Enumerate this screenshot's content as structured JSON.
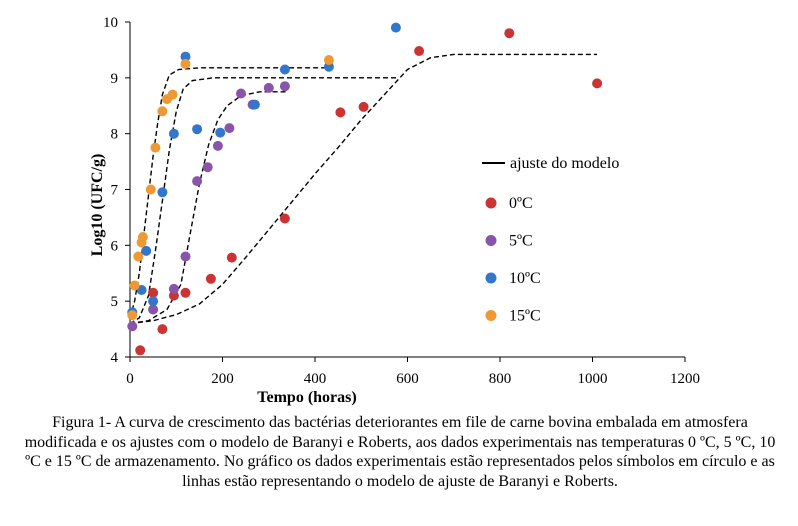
{
  "chart_data": {
    "type": "scatter",
    "xlabel": "Tempo (horas)",
    "ylabel": "Log10 (UFC/g)",
    "xlim": [
      0,
      1200
    ],
    "ylim": [
      4,
      10
    ],
    "x_ticks": [
      "0",
      "200",
      "400",
      "600",
      "800",
      "1000",
      "1200"
    ],
    "y_ticks": [
      "4",
      "5",
      "6",
      "7",
      "8",
      "9",
      "10"
    ],
    "grid": false,
    "legend_position": "right",
    "fit_label": "ajuste do modelo",
    "series": [
      {
        "name": "0ºC",
        "color": "#cc3333",
        "points": [
          [
            22,
            4.12
          ],
          [
            50,
            5.15
          ],
          [
            70,
            4.5
          ],
          [
            95,
            5.1
          ],
          [
            120,
            5.15
          ],
          [
            175,
            5.4
          ],
          [
            220,
            5.78
          ],
          [
            335,
            6.48
          ],
          [
            455,
            8.38
          ],
          [
            505,
            8.48
          ],
          [
            625,
            9.48
          ],
          [
            820,
            9.8
          ],
          [
            1010,
            8.9
          ]
        ],
        "fit": [
          [
            0,
            4.6
          ],
          [
            50,
            4.65
          ],
          [
            100,
            4.76
          ],
          [
            150,
            4.95
          ],
          [
            200,
            5.3
          ],
          [
            250,
            5.78
          ],
          [
            300,
            6.28
          ],
          [
            350,
            6.78
          ],
          [
            400,
            7.28
          ],
          [
            450,
            7.75
          ],
          [
            500,
            8.25
          ],
          [
            550,
            8.7
          ],
          [
            600,
            9.15
          ],
          [
            650,
            9.36
          ],
          [
            700,
            9.42
          ],
          [
            1010,
            9.42
          ]
        ]
      },
      {
        "name": "5ºC",
        "color": "#8855aa",
        "points": [
          [
            5,
            4.55
          ],
          [
            50,
            4.85
          ],
          [
            95,
            5.22
          ],
          [
            120,
            5.8
          ],
          [
            145,
            7.15
          ],
          [
            168,
            7.4
          ],
          [
            190,
            7.78
          ],
          [
            215,
            8.1
          ],
          [
            240,
            8.72
          ],
          [
            265,
            8.52
          ],
          [
            300,
            8.82
          ],
          [
            335,
            8.85
          ]
        ],
        "fit": [
          [
            0,
            4.6
          ],
          [
            40,
            4.65
          ],
          [
            80,
            4.85
          ],
          [
            110,
            5.3
          ],
          [
            130,
            6.2
          ],
          [
            150,
            7.1
          ],
          [
            170,
            7.8
          ],
          [
            190,
            8.25
          ],
          [
            210,
            8.5
          ],
          [
            240,
            8.68
          ],
          [
            280,
            8.75
          ],
          [
            340,
            8.75
          ]
        ]
      },
      {
        "name": "10ºC",
        "color": "#3377cc",
        "points": [
          [
            5,
            4.8
          ],
          [
            25,
            5.2
          ],
          [
            35,
            5.9
          ],
          [
            50,
            5.0
          ],
          [
            70,
            6.95
          ],
          [
            95,
            8.0
          ],
          [
            120,
            9.38
          ],
          [
            145,
            8.08
          ],
          [
            195,
            8.02
          ],
          [
            270,
            8.52
          ],
          [
            335,
            9.15
          ],
          [
            430,
            9.2
          ],
          [
            575,
            9.9
          ]
        ],
        "fit": [
          [
            0,
            4.6
          ],
          [
            20,
            4.7
          ],
          [
            40,
            5.1
          ],
          [
            55,
            5.9
          ],
          [
            70,
            6.8
          ],
          [
            85,
            7.7
          ],
          [
            100,
            8.4
          ],
          [
            115,
            8.8
          ],
          [
            135,
            8.95
          ],
          [
            180,
            9.0
          ],
          [
            300,
            9.0
          ],
          [
            400,
            9.0
          ],
          [
            580,
            9.0
          ]
        ]
      },
      {
        "name": "15ºC",
        "color": "#ee9933",
        "points": [
          [
            5,
            4.75
          ],
          [
            10,
            5.28
          ],
          [
            18,
            5.8
          ],
          [
            25,
            6.05
          ],
          [
            28,
            6.15
          ],
          [
            45,
            7.0
          ],
          [
            55,
            7.75
          ],
          [
            70,
            8.4
          ],
          [
            80,
            8.62
          ],
          [
            92,
            8.7
          ],
          [
            120,
            9.25
          ],
          [
            430,
            9.32
          ]
        ],
        "fit": [
          [
            0,
            4.7
          ],
          [
            10,
            5.0
          ],
          [
            20,
            5.5
          ],
          [
            30,
            6.2
          ],
          [
            40,
            6.9
          ],
          [
            50,
            7.6
          ],
          [
            60,
            8.2
          ],
          [
            70,
            8.7
          ],
          [
            85,
            9.05
          ],
          [
            105,
            9.15
          ],
          [
            150,
            9.18
          ],
          [
            300,
            9.18
          ],
          [
            430,
            9.18
          ]
        ]
      }
    ]
  },
  "caption": "Figura 1- A curva de crescimento das bactérias deteriorantes em file de carne bovina embalada em atmosfera modificada e os ajustes com o modelo de Baranyi e Roberts, aos dados experimentais nas temperaturas 0 ºC, 5 ºC, 10 ºC e 15 ºC de armazenamento. No gráfico os dados experimentais estão representados pelos símbolos em círculo e as linhas estão representando o modelo de ajuste de Baranyi e Roberts."
}
